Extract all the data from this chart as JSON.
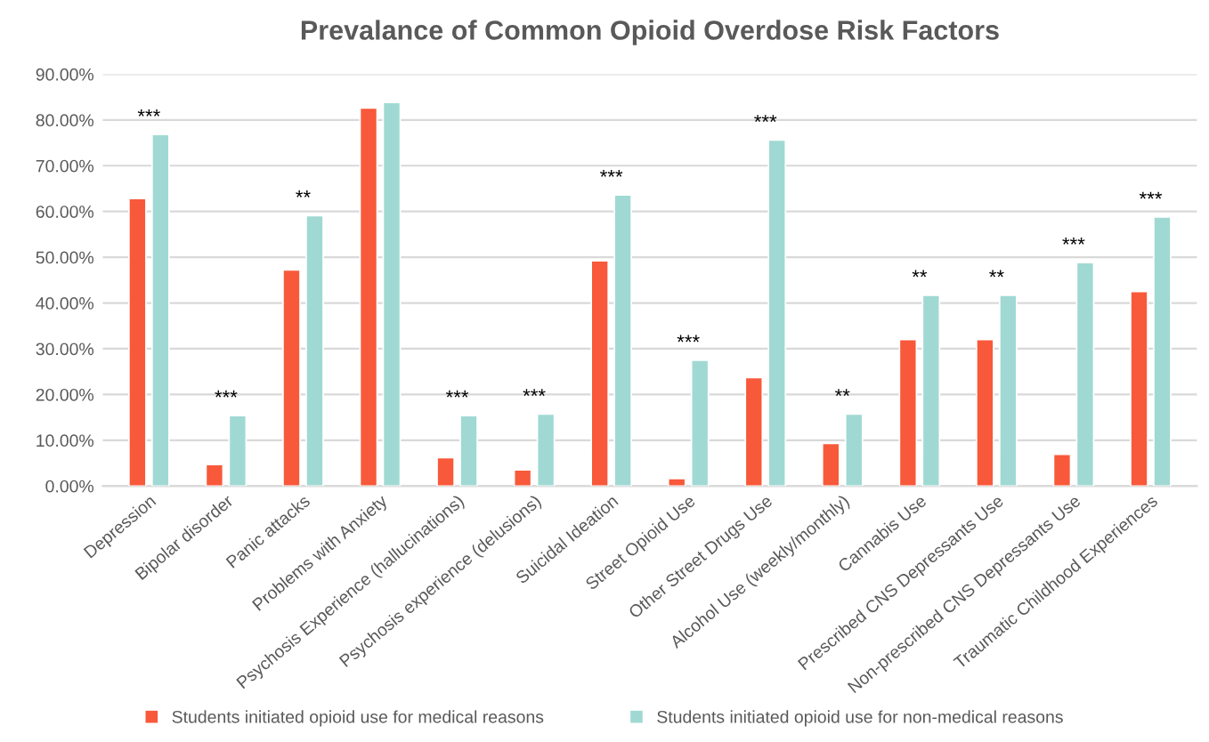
{
  "chart_data": {
    "type": "bar",
    "title": "Prevalance of Common Opioid Overdose Risk Factors",
    "categories": [
      "Depression",
      "Bipolar disorder",
      "Panic attacks",
      "Problems with Anxiety",
      "Psychosis Experience (hallucinations)",
      "Psychosis experience (delusions)",
      "Suicidal Ideation",
      "Street Opioid Use",
      "Other Street Drugs Use",
      "Alcohol Use (weekly/monthly)",
      "Cannabis Use",
      "Prescribed CNS Depressants Use",
      "Non-prescribed CNS Depressants Use",
      "Traumatic Childhood Experiences"
    ],
    "series": [
      {
        "name": "Students initiated opioid use for medical reasons",
        "color": "#f8593a",
        "values": [
          62.8,
          4.7,
          47.2,
          82.6,
          6.2,
          3.5,
          49.2,
          1.6,
          23.7,
          9.3,
          32.0,
          32.0,
          6.9,
          42.5
        ]
      },
      {
        "name": "Students initiated opioid use for non-medical reasons",
        "color": "#a0d9d3",
        "values": [
          76.8,
          15.4,
          59.1,
          83.8,
          15.4,
          15.7,
          63.6,
          27.5,
          75.6,
          15.7,
          41.7,
          41.7,
          48.8,
          58.8
        ]
      }
    ],
    "ylim": [
      0,
      90
    ],
    "yticks": [
      {
        "value": 0,
        "label": "0.00%"
      },
      {
        "value": 10,
        "label": "10.00%"
      },
      {
        "value": 20,
        "label": "20.00%"
      },
      {
        "value": 30,
        "label": "30.00%"
      },
      {
        "value": 40,
        "label": "40.00%"
      },
      {
        "value": 50,
        "label": "50.00%"
      },
      {
        "value": 60,
        "label": "60.00%"
      },
      {
        "value": 70,
        "label": "70.00%"
      },
      {
        "value": 80,
        "label": "80.00%"
      },
      {
        "value": 90,
        "label": "90.00%"
      }
    ],
    "grid": "y",
    "legend": "bottom",
    "annotations": [
      {
        "text": "***",
        "x": "Depression",
        "y": 76.8
      },
      {
        "text": "***",
        "x": "Bipolar disorder",
        "y": 15.4
      },
      {
        "text": "**",
        "x": "Panic attacks",
        "y": 59.1
      },
      {
        "text": "***",
        "x": "Psychosis Experience (hallucinations)",
        "y": 15.4
      },
      {
        "text": "***",
        "x": "Psychosis experience (delusions)",
        "y": 15.7
      },
      {
        "text": "***",
        "x": "Suicidal Ideation",
        "y": 63.6
      },
      {
        "text": "***",
        "x": "Street Opioid Use",
        "y": 27.5
      },
      {
        "text": "***",
        "x": "Other Street Drugs Use",
        "y": 75.6
      },
      {
        "text": "**",
        "x": "Alcohol Use (weekly/monthly)",
        "y": 15.7
      },
      {
        "text": "**",
        "x": "Cannabis Use",
        "y": 41.7
      },
      {
        "text": "**",
        "x": "Prescribed CNS Depressants Use",
        "y": 41.7
      },
      {
        "text": "***",
        "x": "Non-prescribed CNS Depressants Use",
        "y": 48.8
      },
      {
        "text": "***",
        "x": "Traumatic Childhood Experiences",
        "y": 58.8
      }
    ]
  }
}
